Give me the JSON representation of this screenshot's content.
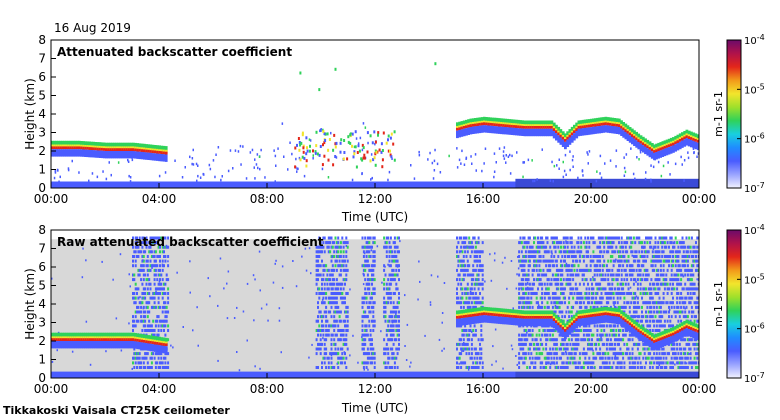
{
  "header": {
    "date": "16 Aug 2019"
  },
  "footer": {
    "site_label": "Tikkakoski Vaisala CT25K ceilometer"
  },
  "colors": {
    "grey_bg": "#d8d8d8",
    "blue_low": "#4a5cff",
    "blue_mid": "#3a4ad6",
    "green": "#2fd25a",
    "yellow": "#f2e52c",
    "red": "#e3261a",
    "dark_red": "#7c0a5c"
  },
  "colorbar": {
    "stops": [
      "#f2f2ff",
      "#9aa4ff",
      "#4a5cff",
      "#1f8cff",
      "#18d0e0",
      "#2fd25a",
      "#9ee02b",
      "#f2e52c",
      "#f29a1a",
      "#e3261a",
      "#b0124a",
      "#6b0a6a"
    ],
    "tick_labels": [
      "10^-7",
      "10^-6",
      "10^-5",
      "10^-4"
    ],
    "unit_label": "m-1 sr-1"
  },
  "chart_data": [
    {
      "type": "heatmap",
      "title": "Attenuated backscatter coefficient",
      "xlabel": "Time (UTC)",
      "ylabel": "Height (km)",
      "xlim": [
        0,
        24
      ],
      "ylim": [
        0,
        8
      ],
      "x_tick_labels": [
        "00:00",
        "04:00",
        "08:00",
        "12:00",
        "16:00",
        "20:00",
        "00:00"
      ],
      "y_tick_labels": [
        "0",
        "1",
        "2",
        "3",
        "4",
        "5",
        "6",
        "7",
        "8"
      ],
      "colorbar_range": [
        1e-07,
        0.0001
      ],
      "cloud_layer_km": [
        {
          "t": 0.0,
          "h": 2.2
        },
        {
          "t": 1.0,
          "h": 2.2
        },
        {
          "t": 2.0,
          "h": 2.1
        },
        {
          "t": 3.0,
          "h": 2.1
        },
        {
          "t": 4.3,
          "h": 1.9
        },
        {
          "t": 15.0,
          "h": 3.2
        },
        {
          "t": 15.5,
          "h": 3.4
        },
        {
          "t": 16.0,
          "h": 3.5
        },
        {
          "t": 17.5,
          "h": 3.3
        },
        {
          "t": 18.5,
          "h": 3.3
        },
        {
          "t": 19.0,
          "h": 2.6
        },
        {
          "t": 19.5,
          "h": 3.3
        },
        {
          "t": 20.5,
          "h": 3.5
        },
        {
          "t": 21.0,
          "h": 3.4
        },
        {
          "t": 21.8,
          "h": 2.5
        },
        {
          "t": 22.3,
          "h": 2.0
        },
        {
          "t": 23.0,
          "h": 2.4
        },
        {
          "t": 23.5,
          "h": 2.8
        },
        {
          "t": 24.0,
          "h": 2.5
        }
      ]
    },
    {
      "type": "heatmap",
      "title": "Raw attenuated backscatter coefficient",
      "xlabel": "Time (UTC)",
      "ylabel": "Height (km)",
      "xlim": [
        0,
        24
      ],
      "ylim": [
        0,
        8
      ],
      "x_tick_labels": [
        "00:00",
        "04:00",
        "08:00",
        "12:00",
        "16:00",
        "20:00",
        "00:00"
      ],
      "y_tick_labels": [
        "0",
        "1",
        "2",
        "3",
        "4",
        "5",
        "6",
        "7",
        "8"
      ],
      "colorbar_range": [
        1e-07,
        0.0001
      ],
      "cloud_layer_km": [
        {
          "t": 0.0,
          "h": 2.1
        },
        {
          "t": 1.0,
          "h": 2.1
        },
        {
          "t": 2.0,
          "h": 2.1
        },
        {
          "t": 3.0,
          "h": 2.1
        },
        {
          "t": 4.3,
          "h": 1.8
        },
        {
          "t": 15.0,
          "h": 3.3
        },
        {
          "t": 15.5,
          "h": 3.4
        },
        {
          "t": 16.0,
          "h": 3.5
        },
        {
          "t": 17.5,
          "h": 3.3
        },
        {
          "t": 18.5,
          "h": 3.3
        },
        {
          "t": 19.0,
          "h": 2.6
        },
        {
          "t": 19.5,
          "h": 3.3
        },
        {
          "t": 20.5,
          "h": 3.5
        },
        {
          "t": 21.0,
          "h": 3.4
        },
        {
          "t": 21.8,
          "h": 2.5
        },
        {
          "t": 22.3,
          "h": 2.0
        },
        {
          "t": 23.0,
          "h": 2.4
        },
        {
          "t": 23.5,
          "h": 2.8
        },
        {
          "t": 24.0,
          "h": 2.5
        }
      ],
      "noise_columns_hours": [
        [
          3.0,
          4.3
        ],
        [
          9.8,
          11.0
        ],
        [
          11.5,
          12.0
        ],
        [
          12.3,
          12.9
        ],
        [
          15.0,
          16.0
        ],
        [
          17.3,
          24.0
        ]
      ]
    }
  ]
}
